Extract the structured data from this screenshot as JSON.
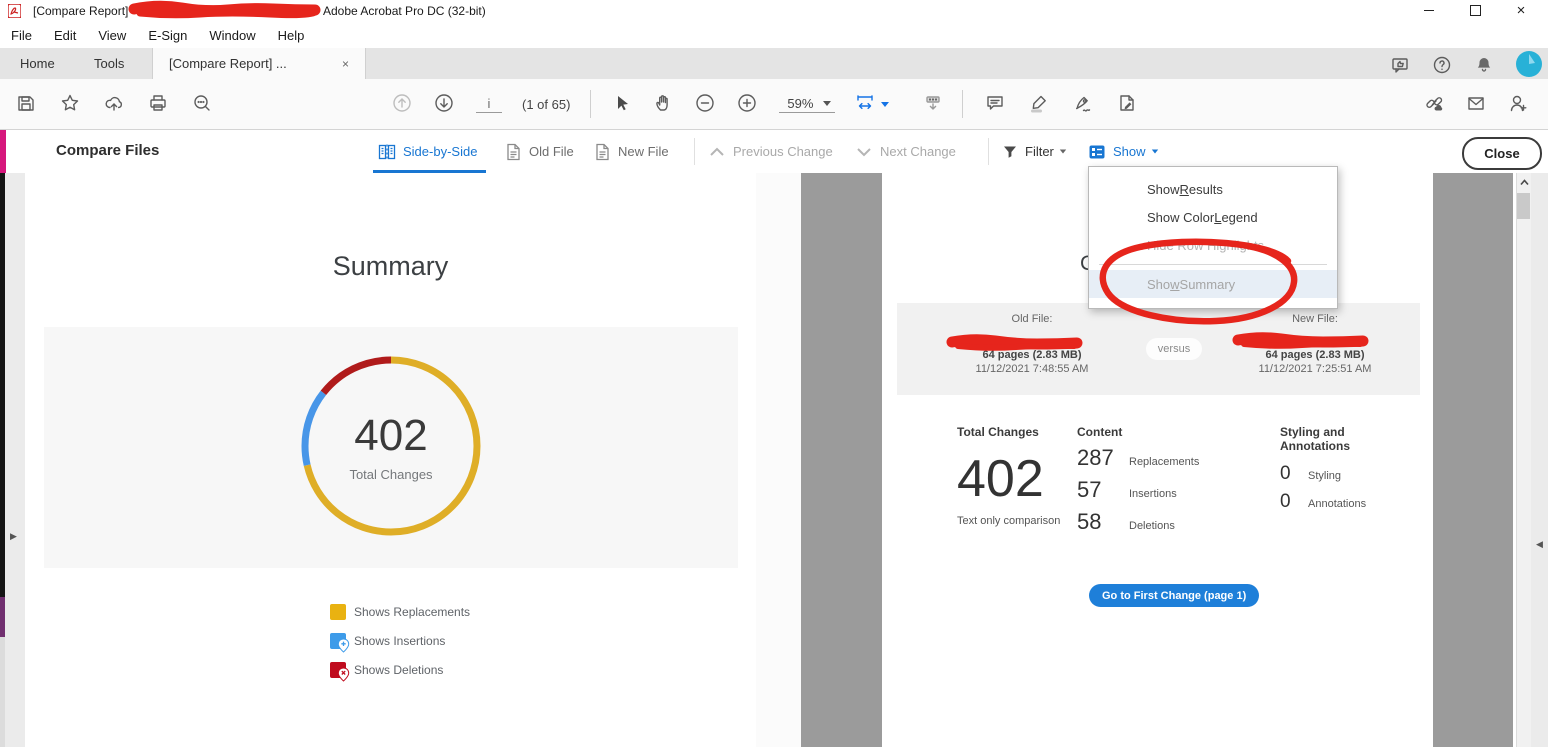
{
  "window": {
    "title_prefix": "[Compare Report]",
    "title_suffix": "Adobe Acrobat Pro DC (32-bit)"
  },
  "menu_bar": {
    "items": [
      "File",
      "Edit",
      "View",
      "E-Sign",
      "Window",
      "Help"
    ]
  },
  "tab_bar": {
    "home": "Home",
    "tools": "Tools",
    "document_tab": "[Compare Report] ...",
    "close_glyph": "×"
  },
  "toolbar": {
    "page_input": "i",
    "page_count": "(1 of 65)",
    "zoom_value": "59%"
  },
  "compare_bar": {
    "title": "Compare Files",
    "side_by_side": "Side-by-Side",
    "old_file": "Old File",
    "new_file": "New File",
    "previous_change": "Previous Change",
    "next_change": "Next Change",
    "filter": "Filter",
    "show": "Show",
    "close": "Close"
  },
  "show_menu": {
    "results": {
      "pre": "Show ",
      "key": "R",
      "post": "esults"
    },
    "color_legend": {
      "pre": "Show Color ",
      "key": "L",
      "post": "egend"
    },
    "row_highlights": {
      "pre": "Hide Row Highlights",
      "key": "",
      "post": ""
    },
    "summary": {
      "pre": "Sho",
      "key": "w",
      "post": " Summary"
    }
  },
  "left_page": {
    "heading": "Summary",
    "total_value": "402",
    "total_label": "Total Changes",
    "legend": [
      {
        "label": "Shows Replacements",
        "color": "#e9b211",
        "marker": "square"
      },
      {
        "label": "Shows Insertions",
        "color": "#3d9be9",
        "marker": "pin-plus"
      },
      {
        "label": "Shows Deletions",
        "color": "#c00c1e",
        "marker": "pin-x"
      }
    ]
  },
  "right_page": {
    "partial_heading": "C",
    "old_file": {
      "label": "Old File:",
      "pages": "64 pages (2.83 MB)",
      "modified": "11/12/2021 7:48:55 AM"
    },
    "versus": "versus",
    "new_file": {
      "label": "New File:",
      "pages": "64 pages (2.83 MB)",
      "modified": "11/12/2021 7:25:51 AM"
    },
    "stats": {
      "total": {
        "header": "Total Changes",
        "value": "402",
        "note": "Text only comparison"
      },
      "content": {
        "header": "Content",
        "rows": [
          {
            "value": "287",
            "label": "Replacements"
          },
          {
            "value": "57",
            "label": "Insertions"
          },
          {
            "value": "58",
            "label": "Deletions"
          }
        ]
      },
      "styling": {
        "header": "Styling and Annotations",
        "rows": [
          {
            "value": "0",
            "label": "Styling"
          },
          {
            "value": "0",
            "label": "Annotations"
          }
        ]
      }
    },
    "goto_button": "Go to First Change (page 1)"
  },
  "chart_data": {
    "type": "pie",
    "title": "Total Changes",
    "categories": [
      "Replacements",
      "Insertions",
      "Deletions"
    ],
    "values": [
      287,
      57,
      58
    ],
    "total": 402,
    "colors": [
      "#dfae27",
      "#4896e8",
      "#b01b1b"
    ],
    "center_label": "402",
    "center_sublabel": "Total Changes",
    "legend_position": "below",
    "donut": true
  },
  "colors": {
    "accent_magenta": "#d6177c",
    "accent_blue": "#1876d2",
    "button_blue": "#1e7fd9",
    "annotation_red": "#e6251c",
    "avatar_teal": "#28b1d7"
  }
}
